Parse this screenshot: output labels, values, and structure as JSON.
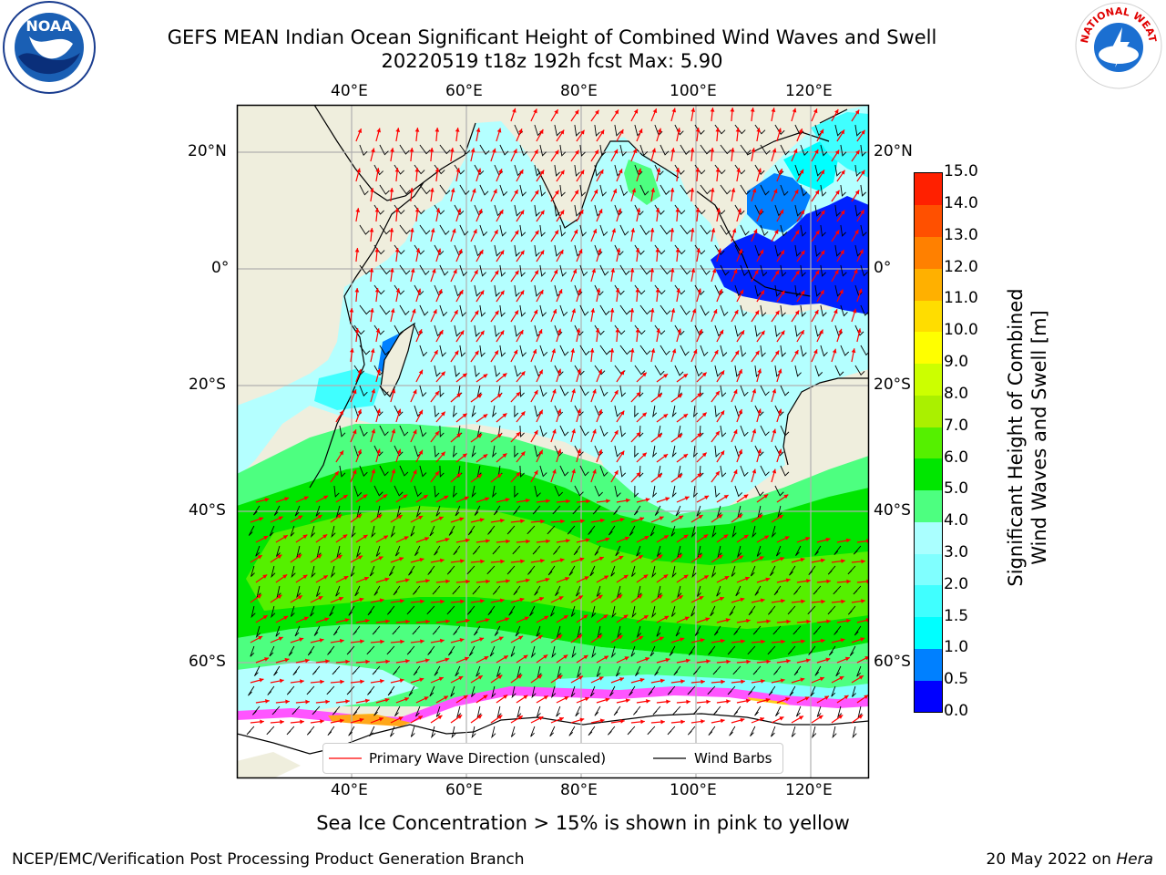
{
  "header": {
    "title_line1": "GEFS MEAN Indian Ocean Significant Height of Combined Wind Waves and Swell",
    "title_line2": "20220519 t18z 192h fcst   Max: 5.90"
  },
  "logos": {
    "left": {
      "text": "NOAA",
      "icon": "noaa-logo"
    },
    "right": {
      "text": "NATIONAL WEATHER SERVICE",
      "icon": "nws-logo"
    }
  },
  "map": {
    "lon_ticks_top": [
      "40°E",
      "60°E",
      "80°E",
      "100°E",
      "120°E"
    ],
    "lon_ticks_bottom": [
      "40°E",
      "60°E",
      "80°E",
      "100°E",
      "120°E"
    ],
    "lat_ticks_left": [
      "20°N",
      "0°",
      "20°S",
      "40°S",
      "60°S"
    ],
    "lat_ticks_right": [
      "20°N",
      "0°",
      "20°S",
      "40°S",
      "60°S"
    ],
    "colors": {
      "land": "#efeedd",
      "ice": "#ffffff",
      "arrow": "#ff0000",
      "barb": "#000000"
    }
  },
  "legend": {
    "wave_direction": "Primary Wave Direction (unscaled)",
    "wind_barbs": "Wind Barbs"
  },
  "colorbar": {
    "label_line1": "Significant Height of Combined",
    "label_line2": "Wind Waves and Swell [m]",
    "ticks": [
      "0.0",
      "0.5",
      "1.0",
      "1.5",
      "2.0",
      "3.0",
      "4.0",
      "5.0",
      "6.0",
      "7.0",
      "8.0",
      "9.0",
      "10.0",
      "11.0",
      "12.0",
      "13.0",
      "14.0",
      "15.0"
    ],
    "colors": [
      "#0000ff",
      "#0080ff",
      "#00ffff",
      "#40ffff",
      "#80ffff",
      "#aaffff",
      "#4dff80",
      "#00e600",
      "#55f000",
      "#aaf000",
      "#ccff00",
      "#ffff00",
      "#ffdd00",
      "#ffb000",
      "#ff8000",
      "#ff5000",
      "#ff2000",
      "#ff0000"
    ]
  },
  "notes": {
    "sea_ice": "Sea Ice Concentration > 15% is shown in pink to yellow"
  },
  "footer": {
    "left": "NCEP/EMC/Verification Post Processing Product Generation Branch",
    "right_date": "20 May 2022 on",
    "right_host": "Hera"
  }
}
